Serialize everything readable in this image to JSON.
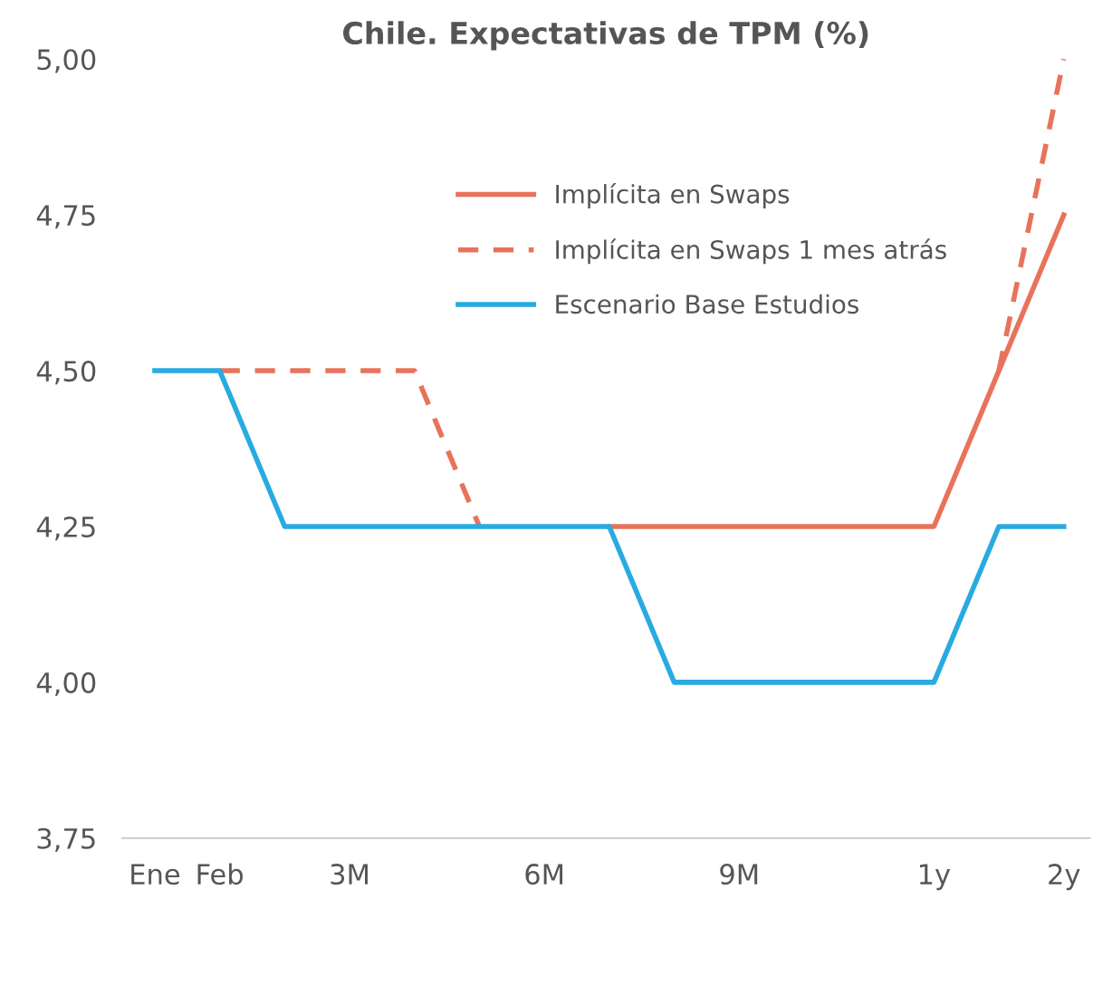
{
  "chart_data": {
    "type": "line",
    "title": "Chile. Expectativas de TPM (%)",
    "categories": [
      "Ene",
      "Feb",
      null,
      "3M",
      null,
      null,
      "6M",
      null,
      null,
      "9M",
      null,
      null,
      "1y",
      null,
      "2y"
    ],
    "series": [
      {
        "name": "Implícita en Swaps",
        "color": "#e8735a",
        "line_style": "solid",
        "values": [
          null,
          null,
          null,
          null,
          null,
          null,
          null,
          4.25,
          4.25,
          4.25,
          4.25,
          4.25,
          4.25,
          4.5,
          4.75
        ]
      },
      {
        "name": "Implícita en Swaps 1 mes atrás",
        "color": "#e8735a",
        "line_style": "dashed",
        "values": [
          null,
          4.5,
          4.5,
          4.5,
          4.5,
          4.25,
          null,
          null,
          null,
          null,
          null,
          null,
          null,
          4.5,
          5.0
        ]
      },
      {
        "name": "Escenario Base Estudios",
        "color": "#29aae1",
        "line_style": "solid",
        "values": [
          4.5,
          4.5,
          4.25,
          4.25,
          4.25,
          4.25,
          4.25,
          4.25,
          4.0,
          4.0,
          4.0,
          4.0,
          4.0,
          4.25,
          4.25
        ]
      }
    ],
    "ylim": [
      3.75,
      5.0
    ],
    "yticks": [
      {
        "value": 3.75,
        "label": "3,75"
      },
      {
        "value": 4.0,
        "label": "4,00"
      },
      {
        "value": 4.25,
        "label": "4,25"
      },
      {
        "value": 4.5,
        "label": "4,50"
      },
      {
        "value": 4.75,
        "label": "4,75"
      },
      {
        "value": 5.0,
        "label": "5,00"
      }
    ],
    "grid": false,
    "legend": "top",
    "marker": "none"
  }
}
